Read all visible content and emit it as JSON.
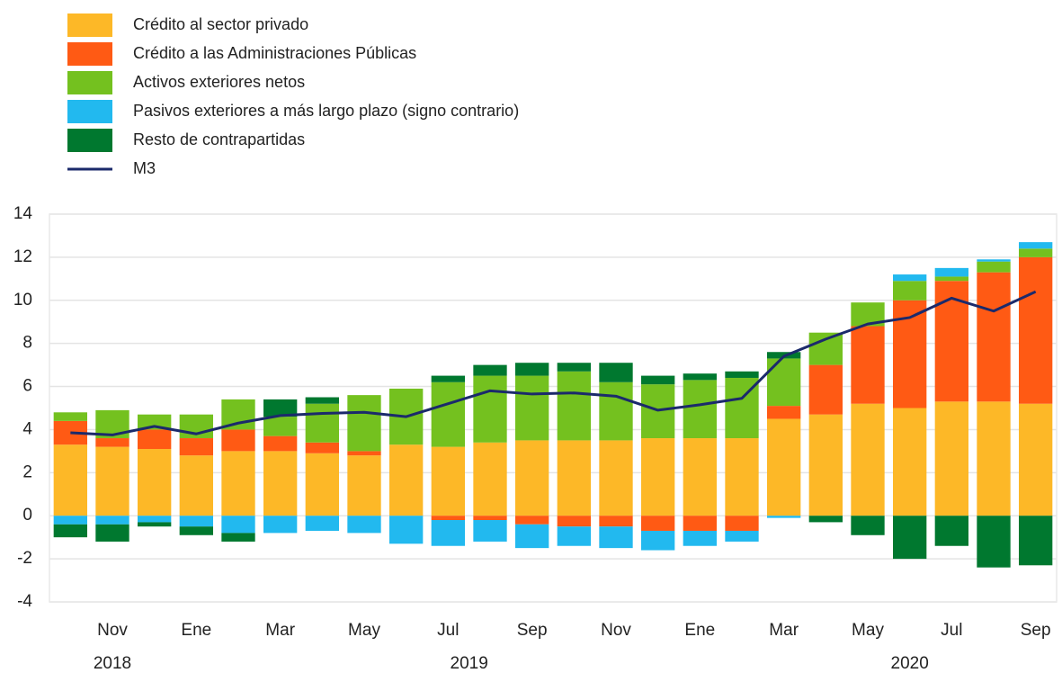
{
  "chart_data": {
    "type": "bar",
    "stacked": true,
    "categories": [
      null,
      "Nov",
      null,
      "Ene",
      null,
      "Mar",
      null,
      "May",
      null,
      "Jul",
      null,
      "Sep",
      null,
      "Nov",
      null,
      "Ene",
      null,
      "Mar",
      null,
      "May",
      null,
      "Jul",
      null,
      "Sep"
    ],
    "years": [
      "2018",
      "2019",
      "2020"
    ],
    "series": [
      {
        "name": "Crédito al sector privado",
        "color": "#fdb827",
        "values": [
          3.3,
          3.2,
          3.1,
          2.8,
          3.0,
          3.0,
          2.9,
          2.8,
          3.3,
          3.2,
          3.4,
          3.5,
          3.5,
          3.5,
          3.6,
          3.6,
          3.6,
          4.5,
          4.7,
          5.2,
          5.0,
          5.3,
          5.3,
          5.2
        ]
      },
      {
        "name": "Crédito a las Administraciones Públicas",
        "color": "#ff5a14",
        "values": [
          1.1,
          0.4,
          0.9,
          0.8,
          1.0,
          0.7,
          0.5,
          0.2,
          0,
          -0.2,
          -0.2,
          -0.4,
          -0.5,
          -0.5,
          -0.7,
          -0.7,
          -0.7,
          0.6,
          2.3,
          3.6,
          5.0,
          5.6,
          6.0,
          6.8
        ]
      },
      {
        "name": "Activos exteriores netos",
        "color": "#74c11f",
        "values": [
          0.4,
          1.3,
          0.7,
          1.1,
          1.4,
          0.9,
          1.8,
          2.6,
          2.6,
          3.0,
          3.1,
          3.0,
          3.2,
          2.7,
          2.5,
          2.7,
          2.8,
          2.2,
          1.5,
          1.1,
          0.9,
          0.2,
          0.5,
          0.4
        ]
      },
      {
        "name": "Pasivos exteriores a más largo plazo (signo contrario)",
        "color": "#22b9ef",
        "values": [
          -0.4,
          -0.4,
          -0.3,
          -0.5,
          -0.8,
          -0.8,
          -0.7,
          -0.8,
          -1.3,
          -1.2,
          -1.0,
          -1.1,
          -0.9,
          -1.0,
          -0.9,
          -0.7,
          -0.5,
          -0.1,
          0,
          0,
          0.3,
          0.4,
          0.1,
          0.3
        ]
      },
      {
        "name": "Resto de contrapartidas",
        "color": "#00782f",
        "values": [
          -0.6,
          -0.8,
          -0.2,
          -0.4,
          -0.4,
          0.8,
          0.3,
          0,
          0,
          0.3,
          0.5,
          0.6,
          0.4,
          0.9,
          0.4,
          0.3,
          0.3,
          0.3,
          -0.3,
          -0.9,
          -2.0,
          -1.4,
          -2.4,
          -2.3
        ]
      }
    ],
    "line": {
      "name": "M3",
      "color": "#1b2a6b",
      "values": [
        3.85,
        3.75,
        4.15,
        3.8,
        4.3,
        4.65,
        4.75,
        4.8,
        4.6,
        5.2,
        5.8,
        5.65,
        5.7,
        5.55,
        4.9,
        5.15,
        5.45,
        7.4,
        8.2,
        8.9,
        9.2,
        10.1,
        9.5,
        10.4
      ]
    },
    "ylim": [
      -4,
      14
    ],
    "yticks": [
      -4,
      -2,
      0,
      2,
      4,
      6,
      8,
      10,
      12,
      14
    ],
    "grid": true
  }
}
